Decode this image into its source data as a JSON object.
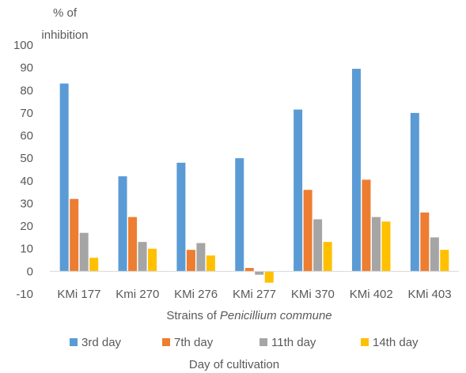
{
  "chart_data": {
    "type": "bar",
    "title": "",
    "ylabel_line1": "% of",
    "ylabel_line2": "inhibition",
    "xlabel_prefix": "Strains of ",
    "xlabel_italic": "Penicillium commune",
    "legend_title": "Day of cultivation",
    "legend_position": "bottom",
    "grid": false,
    "ylim": [
      -10,
      100
    ],
    "yticks": [
      -10,
      0,
      10,
      20,
      30,
      40,
      50,
      60,
      70,
      80,
      90,
      100
    ],
    "categories": [
      "KMi 177",
      "Kmi 270",
      "KMi 276",
      "KMi 277",
      "KMi 370",
      "KMi 402",
      "KMi 403"
    ],
    "series": [
      {
        "name": "3rd day",
        "color": "#5B9BD5",
        "values": [
          83,
          42,
          48,
          50,
          71.5,
          89.5,
          70
        ]
      },
      {
        "name": "7th day",
        "color": "#ED7D31",
        "values": [
          32,
          24,
          9.5,
          1.5,
          36,
          40.5,
          26
        ]
      },
      {
        "name": "11th day",
        "color": "#A5A5A5",
        "values": [
          17,
          13,
          12.5,
          -1.5,
          23,
          24,
          15
        ]
      },
      {
        "name": "14th day",
        "color": "#FFC000",
        "values": [
          6,
          10,
          7,
          -5,
          13,
          22,
          9.5
        ]
      }
    ]
  }
}
